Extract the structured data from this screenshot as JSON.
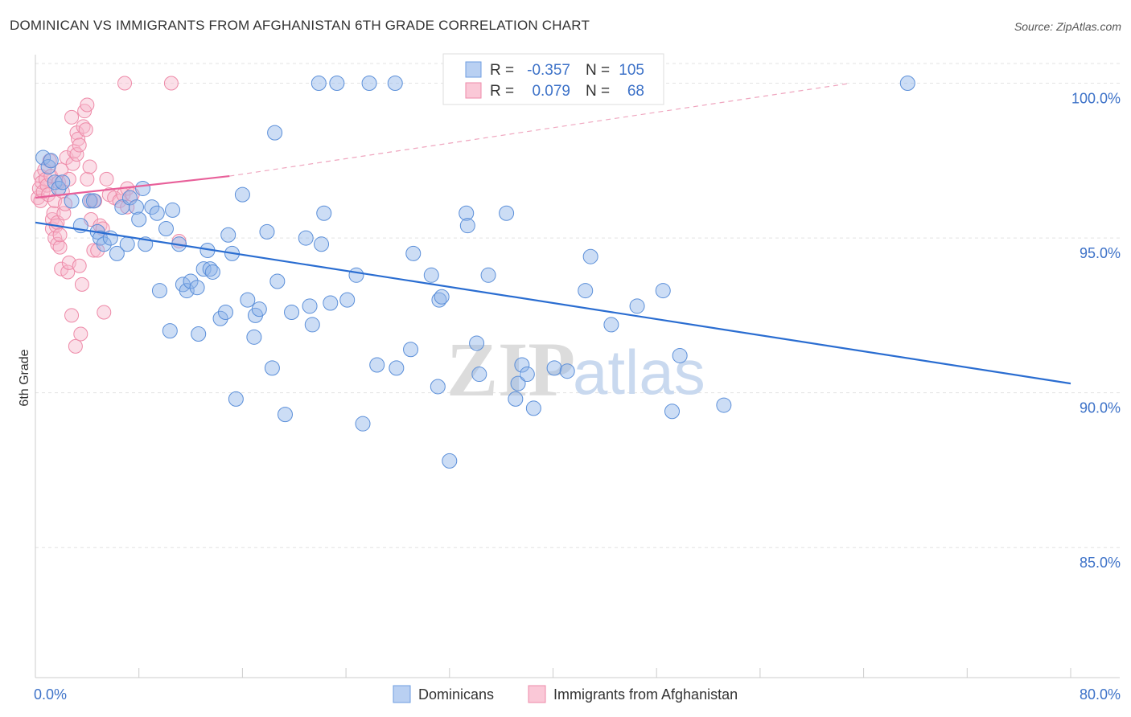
{
  "title": "DOMINICAN VS IMMIGRANTS FROM AFGHANISTAN 6TH GRADE CORRELATION CHART",
  "source": "Source: ZipAtlas.com",
  "watermark": {
    "zip": "ZIP",
    "atlas": "atlas"
  },
  "chart_data": {
    "type": "scatter",
    "title": "DOMINICAN VS IMMIGRANTS FROM AFGHANISTAN 6TH GRADE CORRELATION CHART",
    "xlabel": "",
    "ylabel": "6th Grade",
    "xlim": [
      0,
      80
    ],
    "ylim": [
      80.8,
      101.0
    ],
    "x_tick_labels": [
      {
        "value": 0,
        "label": "0.0%"
      },
      {
        "value": 80,
        "label": "80.0%"
      }
    ],
    "y_ticks": [
      {
        "value": 100,
        "label": "100.0%"
      },
      {
        "value": 95,
        "label": "95.0%"
      },
      {
        "value": 90,
        "label": "90.0%"
      },
      {
        "value": 85,
        "label": "85.0%"
      }
    ],
    "x_minor_ticks": [
      0,
      8,
      16,
      24,
      32,
      40,
      48,
      56,
      64,
      72,
      80
    ],
    "grid": true,
    "legend_position": "top-center",
    "series": [
      {
        "name": "Dominicans",
        "color": "#8fb4e8",
        "stroke": "#5b8fd9",
        "line_color": "#2a6dd1",
        "R": "-0.357",
        "N": "105",
        "trend": {
          "x0": 0,
          "y0": 95.5,
          "x1": 80,
          "y1": 90.3
        },
        "points": [
          [
            0.6,
            97.6
          ],
          [
            1.0,
            97.3
          ],
          [
            1.2,
            97.5
          ],
          [
            1.5,
            96.8
          ],
          [
            1.8,
            96.6
          ],
          [
            2.1,
            96.8
          ],
          [
            2.8,
            96.2
          ],
          [
            3.5,
            95.4
          ],
          [
            4.2,
            96.2
          ],
          [
            4.5,
            96.2
          ],
          [
            4.8,
            95.2
          ],
          [
            5.0,
            95.0
          ],
          [
            5.3,
            94.8
          ],
          [
            5.8,
            95.0
          ],
          [
            6.3,
            94.5
          ],
          [
            6.7,
            96.0
          ],
          [
            7.1,
            94.8
          ],
          [
            7.3,
            96.3
          ],
          [
            7.8,
            96.0
          ],
          [
            8.0,
            95.6
          ],
          [
            8.3,
            96.6
          ],
          [
            8.5,
            94.8
          ],
          [
            9.0,
            96.0
          ],
          [
            9.4,
            95.8
          ],
          [
            9.6,
            93.3
          ],
          [
            10.1,
            95.3
          ],
          [
            10.4,
            92.0
          ],
          [
            10.6,
            95.9
          ],
          [
            11.1,
            94.8
          ],
          [
            11.4,
            93.5
          ],
          [
            11.7,
            93.3
          ],
          [
            12.0,
            93.6
          ],
          [
            12.5,
            93.4
          ],
          [
            12.6,
            91.9
          ],
          [
            13.0,
            94.0
          ],
          [
            13.3,
            94.6
          ],
          [
            13.5,
            94.0
          ],
          [
            13.7,
            93.9
          ],
          [
            14.3,
            92.4
          ],
          [
            14.7,
            92.6
          ],
          [
            14.9,
            95.1
          ],
          [
            15.2,
            94.5
          ],
          [
            15.5,
            89.8
          ],
          [
            16.0,
            96.4
          ],
          [
            16.4,
            93.0
          ],
          [
            16.9,
            91.8
          ],
          [
            17.0,
            92.5
          ],
          [
            17.3,
            92.7
          ],
          [
            17.9,
            95.2
          ],
          [
            18.3,
            90.8
          ],
          [
            18.5,
            98.4
          ],
          [
            18.7,
            93.6
          ],
          [
            19.3,
            89.3
          ],
          [
            19.8,
            92.6
          ],
          [
            20.9,
            95.0
          ],
          [
            21.2,
            92.8
          ],
          [
            21.4,
            92.2
          ],
          [
            21.9,
            100.0
          ],
          [
            22.1,
            94.8
          ],
          [
            22.3,
            95.8
          ],
          [
            22.8,
            92.9
          ],
          [
            23.3,
            100.0
          ],
          [
            24.1,
            93.0
          ],
          [
            24.8,
            93.8
          ],
          [
            25.3,
            89.0
          ],
          [
            25.8,
            100.0
          ],
          [
            26.4,
            90.9
          ],
          [
            27.8,
            100.0
          ],
          [
            27.9,
            90.8
          ],
          [
            29.0,
            91.4
          ],
          [
            29.2,
            94.5
          ],
          [
            30.6,
            93.8
          ],
          [
            31.1,
            90.2
          ],
          [
            31.2,
            93.0
          ],
          [
            31.4,
            93.1
          ],
          [
            32.0,
            87.8
          ],
          [
            32.4,
            100.0
          ],
          [
            33.3,
            95.8
          ],
          [
            33.4,
            95.4
          ],
          [
            34.1,
            91.6
          ],
          [
            34.3,
            90.6
          ],
          [
            35.0,
            93.8
          ],
          [
            36.4,
            95.8
          ],
          [
            37.1,
            89.8
          ],
          [
            37.3,
            90.3
          ],
          [
            37.6,
            90.9
          ],
          [
            38.0,
            90.6
          ],
          [
            38.5,
            89.5
          ],
          [
            40.1,
            90.8
          ],
          [
            41.1,
            90.7
          ],
          [
            42.5,
            93.3
          ],
          [
            42.9,
            94.4
          ],
          [
            44.5,
            92.2
          ],
          [
            46.5,
            92.8
          ],
          [
            48.5,
            93.3
          ],
          [
            49.2,
            89.4
          ],
          [
            49.8,
            91.2
          ],
          [
            53.2,
            89.6
          ],
          [
            67.4,
            100.0
          ]
        ]
      },
      {
        "name": "Immigrants from Afghanistan",
        "color": "#f6b8cb",
        "stroke": "#ee8aa8",
        "line_color": "#e8609a",
        "R": "0.079",
        "N": "68",
        "trend": {
          "x0": 0,
          "y0": 96.3,
          "x1": 15,
          "y1": 97.0
        },
        "trend_extension": {
          "x0": 15,
          "y0": 97.0,
          "x1": 63,
          "y1": 100.0
        },
        "points": [
          [
            0.2,
            96.3
          ],
          [
            0.3,
            96.6
          ],
          [
            0.4,
            97.0
          ],
          [
            0.4,
            96.2
          ],
          [
            0.5,
            96.8
          ],
          [
            0.6,
            96.5
          ],
          [
            0.7,
            97.2
          ],
          [
            0.8,
            96.9
          ],
          [
            0.9,
            96.7
          ],
          [
            1.0,
            96.4
          ],
          [
            1.1,
            97.5
          ],
          [
            1.2,
            97.0
          ],
          [
            1.3,
            95.6
          ],
          [
            1.3,
            95.3
          ],
          [
            1.4,
            95.8
          ],
          [
            1.5,
            96.2
          ],
          [
            1.5,
            95.0
          ],
          [
            1.6,
            95.4
          ],
          [
            1.7,
            94.8
          ],
          [
            1.7,
            95.5
          ],
          [
            1.8,
            96.8
          ],
          [
            1.9,
            94.7
          ],
          [
            1.9,
            95.1
          ],
          [
            2.0,
            94.0
          ],
          [
            2.0,
            97.2
          ],
          [
            2.1,
            96.5
          ],
          [
            2.2,
            95.8
          ],
          [
            2.3,
            96.1
          ],
          [
            2.4,
            97.6
          ],
          [
            2.5,
            93.9
          ],
          [
            2.6,
            94.2
          ],
          [
            2.6,
            96.9
          ],
          [
            2.8,
            98.9
          ],
          [
            2.8,
            92.5
          ],
          [
            2.9,
            97.4
          ],
          [
            3.0,
            97.8
          ],
          [
            3.1,
            91.5
          ],
          [
            3.2,
            98.4
          ],
          [
            3.2,
            97.7
          ],
          [
            3.3,
            98.2
          ],
          [
            3.4,
            98.0
          ],
          [
            3.4,
            94.1
          ],
          [
            3.5,
            91.9
          ],
          [
            3.6,
            93.5
          ],
          [
            3.7,
            98.6
          ],
          [
            3.8,
            99.1
          ],
          [
            3.9,
            98.5
          ],
          [
            4.0,
            99.3
          ],
          [
            4.0,
            96.9
          ],
          [
            4.2,
            97.3
          ],
          [
            4.3,
            95.6
          ],
          [
            4.3,
            96.2
          ],
          [
            4.5,
            94.6
          ],
          [
            4.6,
            96.2
          ],
          [
            4.8,
            94.6
          ],
          [
            5.0,
            95.4
          ],
          [
            5.2,
            95.3
          ],
          [
            5.3,
            92.6
          ],
          [
            5.5,
            96.9
          ],
          [
            5.7,
            96.4
          ],
          [
            6.1,
            96.3
          ],
          [
            6.5,
            96.2
          ],
          [
            6.8,
            96.4
          ],
          [
            7.1,
            96.0
          ],
          [
            7.1,
            96.6
          ],
          [
            7.5,
            96.4
          ],
          [
            11.1,
            94.9
          ],
          [
            6.9,
            100.0
          ],
          [
            10.5,
            100.0
          ]
        ]
      }
    ]
  },
  "legend": {
    "r_label": "R =",
    "n_label": "N =",
    "items": [
      {
        "r": "-0.357",
        "n": "105"
      },
      {
        "r": "0.079",
        "n": "68"
      }
    ]
  },
  "bottom_legend": {
    "items": [
      "Dominicans",
      "Immigrants from Afghanistan"
    ]
  }
}
